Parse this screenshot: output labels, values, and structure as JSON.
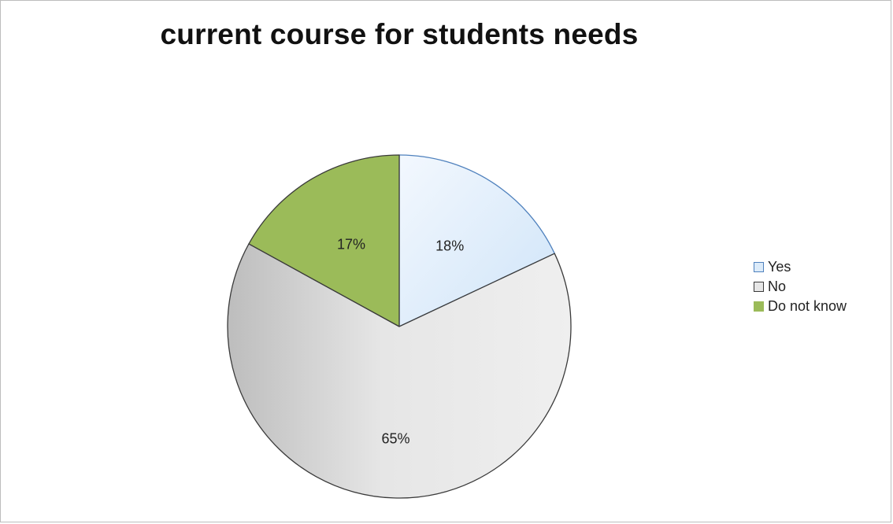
{
  "chart_data": {
    "type": "pie",
    "title": "current course for students needs",
    "categories": [
      "Yes",
      "No",
      "Do not know"
    ],
    "values": [
      18,
      65,
      17
    ],
    "value_labels": [
      "18%",
      "65%",
      "17%"
    ],
    "legend_position": "right",
    "colors": [
      "#dcebf9",
      "#e6e6e6",
      "#9bbb59"
    ],
    "stroke_colors": [
      "#4f81bd",
      "#3a3a3a",
      "#3a3a3a"
    ]
  }
}
